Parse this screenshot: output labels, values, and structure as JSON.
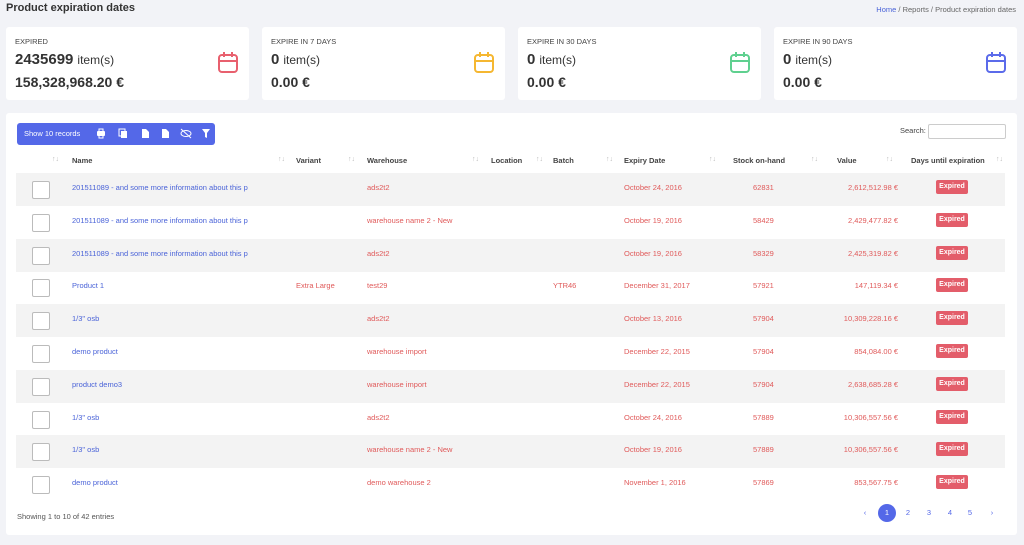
{
  "header": {
    "title": "Product expiration dates",
    "breadcrumb": [
      "Home",
      "Reports",
      "Product expiration dates"
    ]
  },
  "cards": [
    {
      "label": "EXPIRED",
      "count": 2435699,
      "unit": "item(s)",
      "amount": "158,328,968.20 €"
    },
    {
      "label": "EXPIRE IN 7 DAYS",
      "count": 0,
      "unit": "item(s)",
      "amount": "0.00 €"
    },
    {
      "label": "EXPIRE IN 30 DAYS",
      "count": 0,
      "unit": "item(s)",
      "amount": "0.00 €"
    },
    {
      "label": "EXPIRE IN 90 DAYS",
      "count": 0,
      "unit": "item(s)",
      "amount": "0.00 €"
    }
  ],
  "toolbar": {
    "show_records": "Show 10 records",
    "search_label": "Search:"
  },
  "table": {
    "columns": [
      "Name",
      "Variant",
      "Warehouse",
      "Location",
      "Batch",
      "Expiry Date",
      "Stock on-hand",
      "Value",
      "Days until expiration"
    ],
    "rows": [
      {
        "name": "201511089 - and some more information about this p",
        "warehouse": "ads2t2",
        "expiry": "October 24, 2016",
        "stock": 62831,
        "value": "2,612,512.98 €",
        "status": "Expired"
      },
      {
        "name": "201511089 - and some more information about this p",
        "warehouse": "warehouse name 2 - New",
        "expiry": "October 19, 2016",
        "stock": 58429,
        "value": "2,429,477.82 €",
        "status": "Expired"
      },
      {
        "name": "201511089 - and some more information about this p",
        "warehouse": "ads2t2",
        "expiry": "October 19, 2016",
        "stock": 58329,
        "value": "2,425,319.82 €",
        "status": "Expired"
      },
      {
        "name": "Product 1",
        "variant": "Extra Large",
        "warehouse": "test29",
        "batch": "YTR46",
        "expiry": "December 31, 2017",
        "stock": 57921,
        "value": "147,119.34 €",
        "status": "Expired"
      },
      {
        "name": "1/3\" osb",
        "warehouse": "ads2t2",
        "expiry": "October 13, 2016",
        "stock": 57904,
        "value": "10,309,228.16 €",
        "status": "Expired"
      },
      {
        "name": "demo product",
        "warehouse": "warehouse import",
        "expiry": "December 22, 2015",
        "stock": 57904,
        "value": "854,084.00 €",
        "status": "Expired"
      },
      {
        "name": "product demo3",
        "warehouse": "warehouse import",
        "expiry": "December 22, 2015",
        "stock": 57904,
        "value": "2,638,685.28 €",
        "status": "Expired"
      },
      {
        "name": "1/3\" osb",
        "warehouse": "ads2t2",
        "expiry": "October 24, 2016",
        "stock": 57889,
        "value": "10,306,557.56 €",
        "status": "Expired"
      },
      {
        "name": "1/3\" osb",
        "warehouse": "warehouse name 2 - New",
        "expiry": "October 19, 2016",
        "stock": 57889,
        "value": "10,306,557.56 €",
        "status": "Expired"
      },
      {
        "name": "demo product",
        "warehouse": "demo warehouse 2",
        "expiry": "November 1, 2016",
        "stock": 57869,
        "value": "853,567.75 €",
        "status": "Expired"
      }
    ]
  },
  "footer": {
    "info": "Showing 1 to 10 of 42 entries",
    "pages": [
      "‹",
      "1",
      "2",
      "3",
      "4",
      "5",
      "›"
    ]
  }
}
